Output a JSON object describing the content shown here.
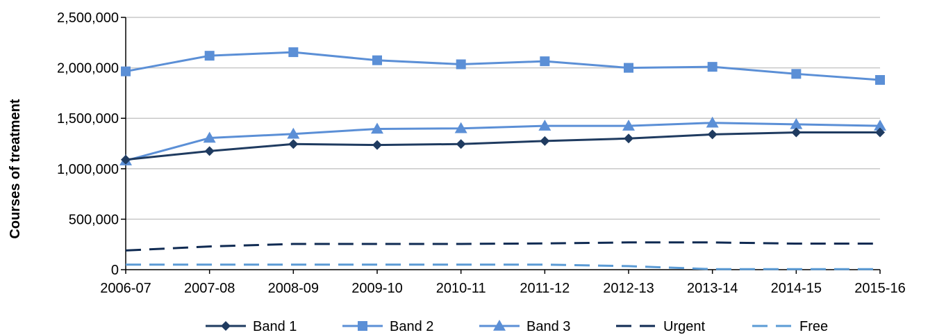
{
  "chart_data": {
    "type": "line",
    "title": "",
    "xlabel": "",
    "ylabel": "Courses of treatment",
    "categories": [
      "2006-07",
      "2007-08",
      "2008-09",
      "2009-10",
      "2010-11",
      "2011-12",
      "2012-13",
      "2013-14",
      "2014-15",
      "2015-16"
    ],
    "ylim": [
      0,
      2500000
    ],
    "yticks": [
      0,
      500000,
      1000000,
      1500000,
      2000000,
      2500000
    ],
    "ytick_labels": [
      "0",
      "500,000",
      "1,000,000",
      "1,500,000",
      "2,000,000",
      "2,500,000"
    ],
    "grid": "horizontal",
    "legend_position": "bottom",
    "series": [
      {
        "name": "Band 1",
        "color": "#1f3b60",
        "marker": "diamond",
        "dash": "solid",
        "values": [
          1090000,
          1175000,
          1245000,
          1235000,
          1245000,
          1275000,
          1300000,
          1340000,
          1360000,
          1360000
        ]
      },
      {
        "name": "Band 2",
        "color": "#5b8fd6",
        "marker": "square",
        "dash": "solid",
        "values": [
          1965000,
          2120000,
          2155000,
          2075000,
          2035000,
          2065000,
          2000000,
          2010000,
          1940000,
          1880000
        ]
      },
      {
        "name": "Band 3",
        "color": "#5b8fd6",
        "marker": "triangle",
        "dash": "solid",
        "values": [
          1080000,
          1305000,
          1345000,
          1395000,
          1400000,
          1425000,
          1425000,
          1455000,
          1440000,
          1425000
        ]
      },
      {
        "name": "Urgent",
        "color": "#0f2a52",
        "marker": "none",
        "dash": "dashed",
        "values": [
          190000,
          230000,
          255000,
          255000,
          255000,
          260000,
          270000,
          270000,
          258000,
          258000
        ]
      },
      {
        "name": "Free",
        "color": "#5b9bd5",
        "marker": "none",
        "dash": "dashed",
        "values": [
          50000,
          50000,
          50000,
          50000,
          50000,
          50000,
          35000,
          5000,
          5000,
          5000
        ]
      }
    ]
  }
}
